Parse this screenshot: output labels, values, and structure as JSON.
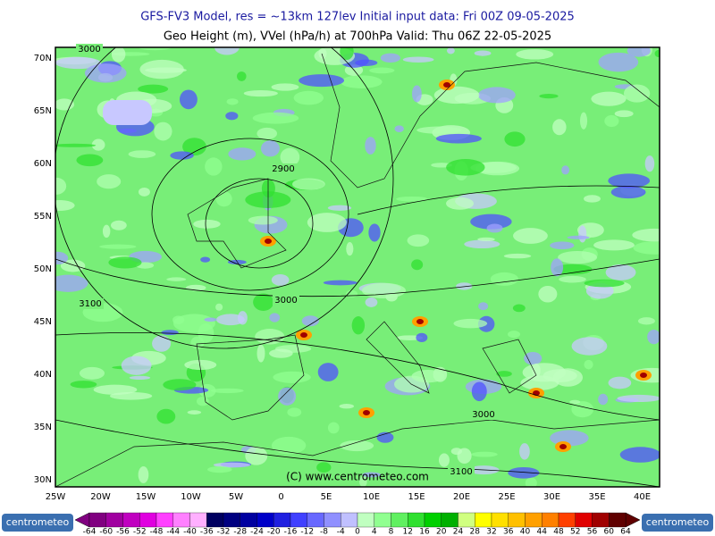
{
  "header": {
    "line1": "GFS-FV3 Model, res = ~13km 127lev    Initial input data: Fri 00Z 09-05-2025",
    "line2": "Geo Height (m), VVel (hPa/h) at 700hPa  Valid: Thu 06Z 22-05-2025"
  },
  "map": {
    "lat_labels": [
      "70N",
      "65N",
      "60N",
      "55N",
      "50N",
      "45N",
      "40N",
      "35N",
      "30N"
    ],
    "lon_labels": [
      "25W",
      "20W",
      "15W",
      "10W",
      "5W",
      "0",
      "5E",
      "10E",
      "15E",
      "20E",
      "25E",
      "30E",
      "35E",
      "40E"
    ],
    "contour_labels": [
      "3000",
      "2900",
      "3000",
      "3100",
      "3000",
      "3100"
    ],
    "copyright": "(C) www.centrometeo.com"
  },
  "colorbar": {
    "labels": [
      -64,
      -60,
      -56,
      -52,
      -48,
      -44,
      -40,
      -36,
      -32,
      -28,
      -24,
      -20,
      -16,
      -12,
      -8,
      -4,
      0,
      4,
      8,
      12,
      16,
      20,
      24,
      28,
      32,
      36,
      40,
      44,
      48,
      52,
      56,
      60,
      64
    ],
    "colors": [
      "#800080",
      "#a000a0",
      "#c000c0",
      "#e000e0",
      "#ff40ff",
      "#ff80ff",
      "#ffb0ff",
      "#000060",
      "#000080",
      "#0000a0",
      "#0000c8",
      "#2020e0",
      "#4040ff",
      "#6868ff",
      "#9090ff",
      "#c0c0ff",
      "#c0ffc0",
      "#90ff90",
      "#60f060",
      "#30e030",
      "#00d000",
      "#00b000",
      "#d0ff80",
      "#ffff00",
      "#ffe000",
      "#ffc000",
      "#ffa000",
      "#ff8000",
      "#ff4000",
      "#e00000",
      "#a00000",
      "#600000"
    ]
  },
  "logos": {
    "left": "centrometeo",
    "right": "centrometeo"
  }
}
